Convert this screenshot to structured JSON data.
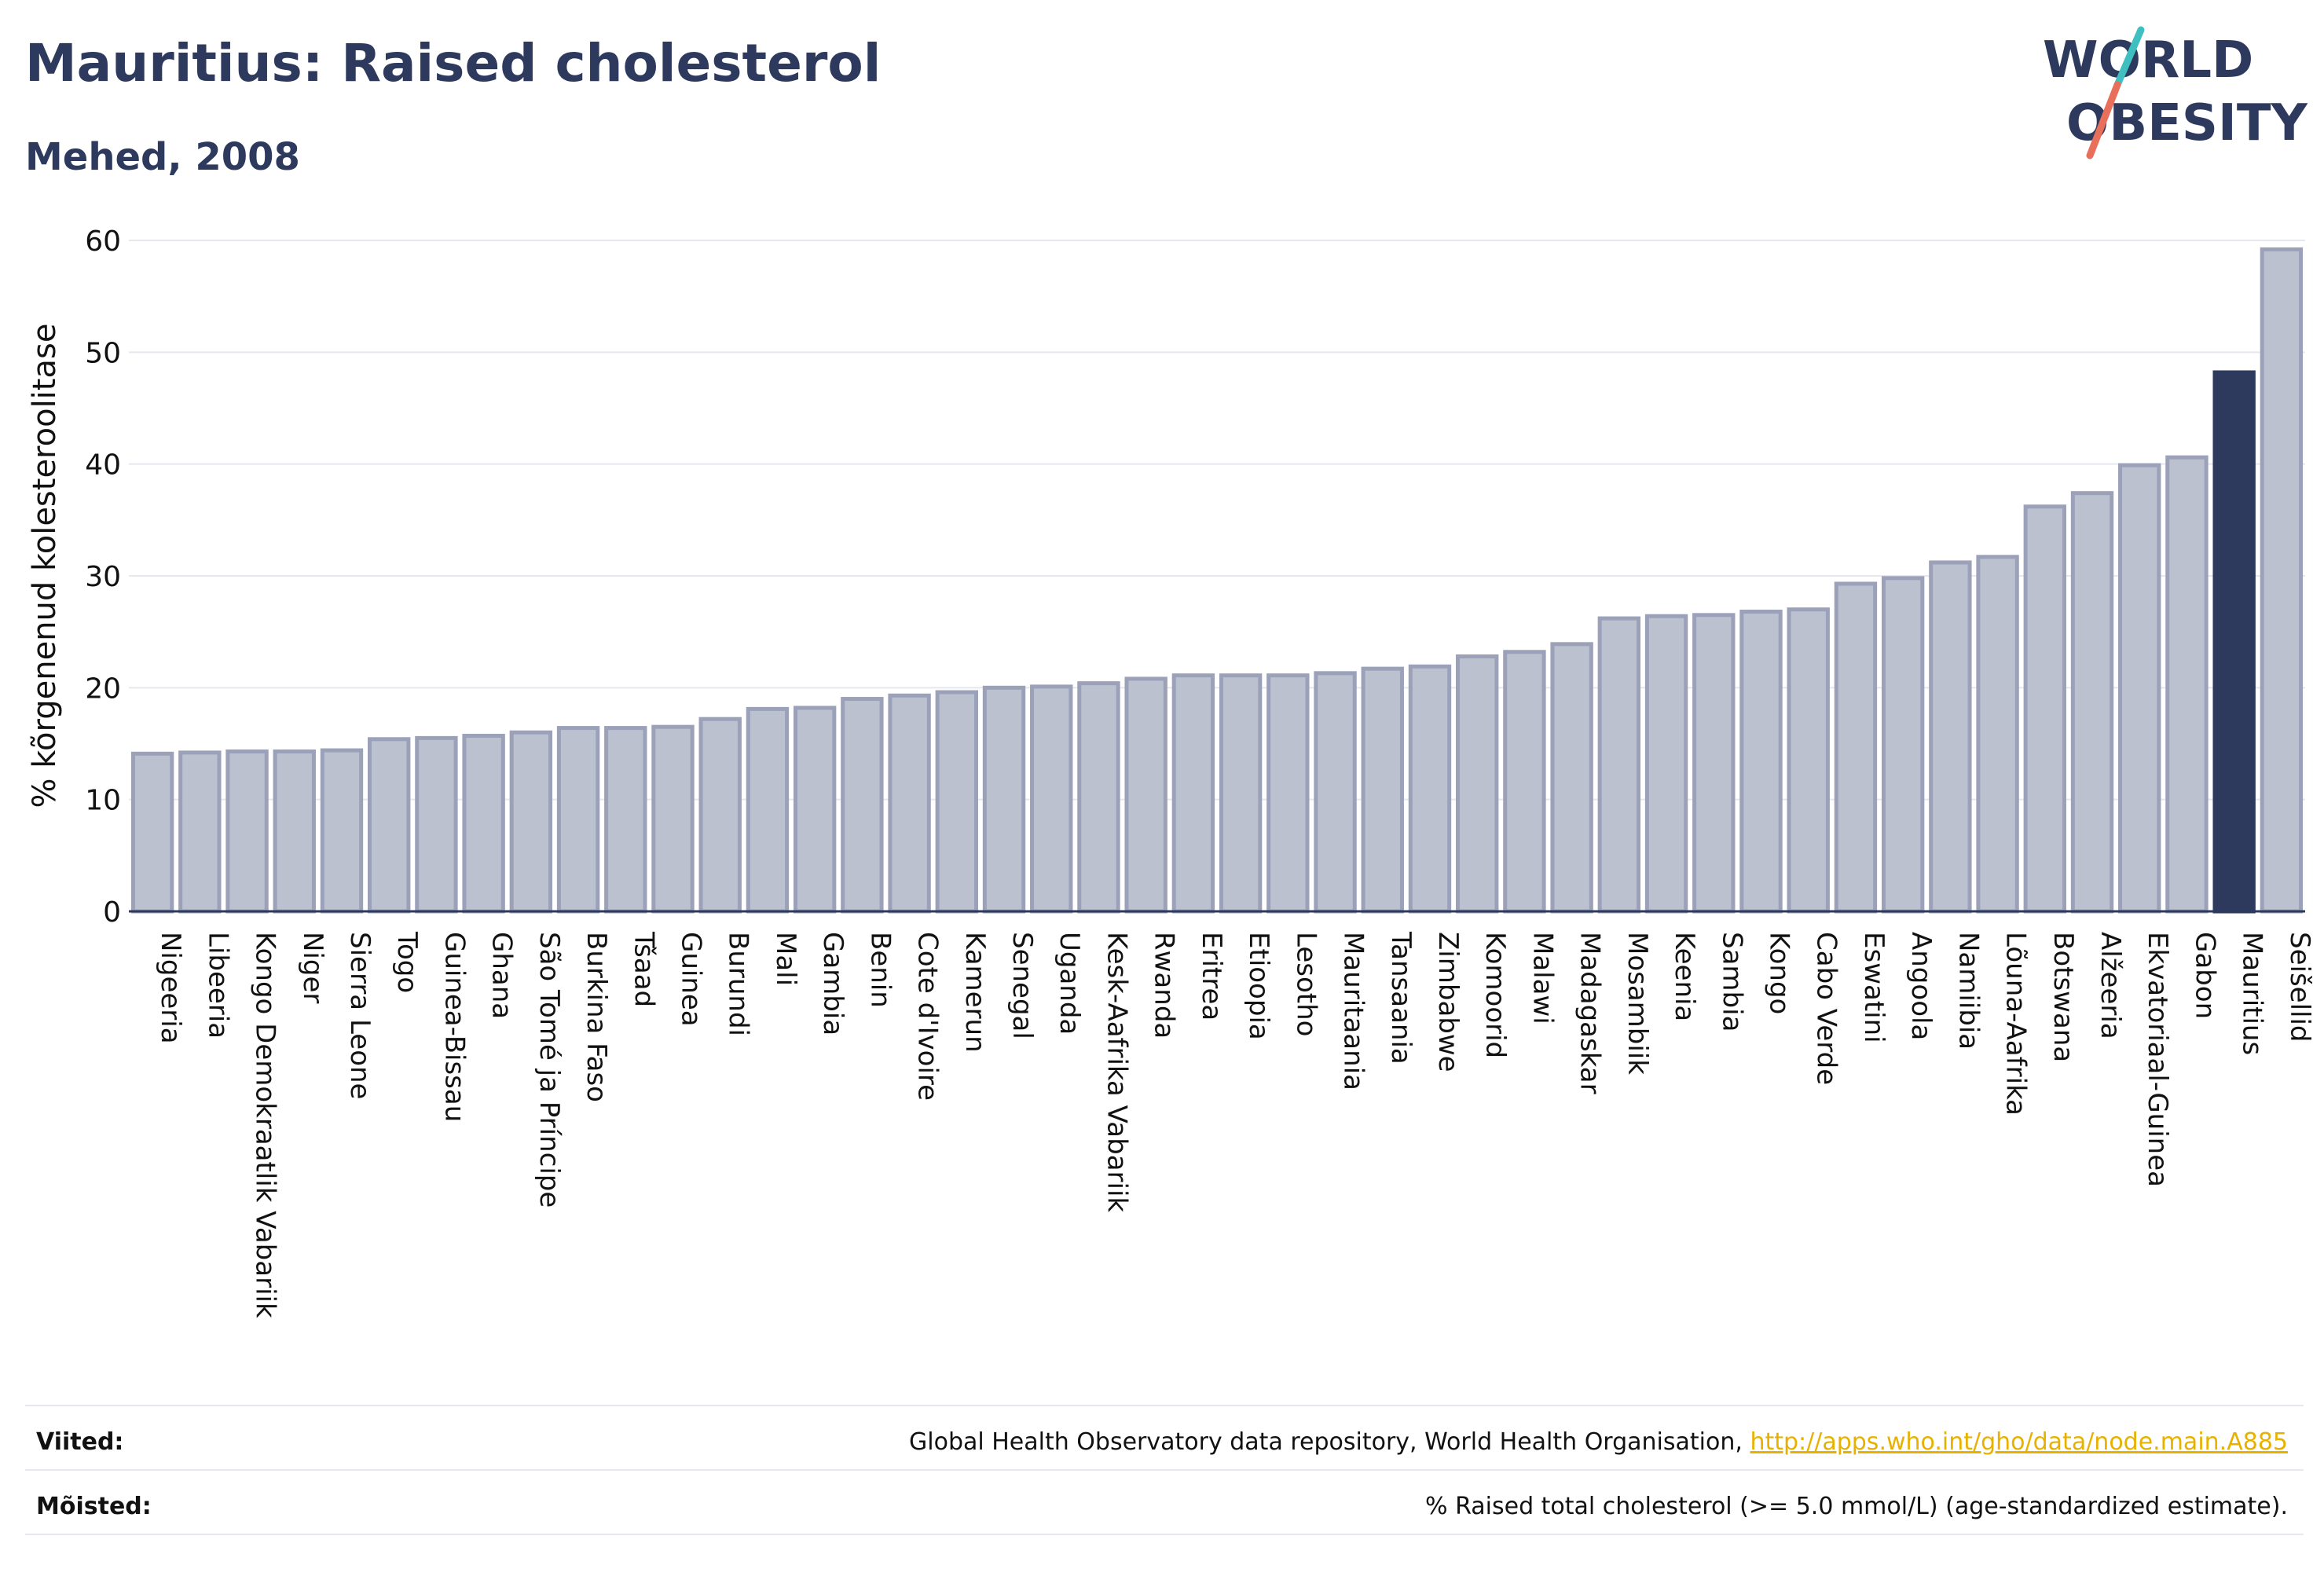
{
  "header": {
    "title": "Mauritius: Raised cholesterol",
    "subtitle": "Mehed, 2008"
  },
  "logo": {
    "line1": "WORLD",
    "line2": "OBESITY"
  },
  "chart_data": {
    "type": "bar",
    "ylabel": "% kõrgenenud kolesteroolitase",
    "ylim": [
      0,
      60
    ],
    "yticks": [
      0,
      10,
      20,
      30,
      40,
      50,
      60
    ],
    "grid": true,
    "highlight": "Mauritius",
    "colors": {
      "bar": "#bcc1d0",
      "bar_stroke": "#9aa1b8",
      "highlight": "#2d3a5e"
    },
    "categories": [
      "Nigeeria",
      "Libeeria",
      "Kongo Demokraatlik Vabariik",
      "Niger",
      "Sierra Leone",
      "Togo",
      "Guinea-Bissau",
      "Ghana",
      "São Tomé ja Príncipe",
      "Burkina Faso",
      "Tšaad",
      "Guinea",
      "Burundi",
      "Mali",
      "Gambia",
      "Benin",
      "Cote d'Ivoire",
      "Kamerun",
      "Senegal",
      "Uganda",
      "Kesk-Aafrika Vabariik",
      "Rwanda",
      "Eritrea",
      "Etioopia",
      "Lesotho",
      "Mauritaania",
      "Tansaania",
      "Zimbabwe",
      "Komoorid",
      "Malawi",
      "Madagaskar",
      "Mosambiik",
      "Keenia",
      "Sambia",
      "Kongo",
      "Cabo Verde",
      "Eswatini",
      "Angoola",
      "Namiibia",
      "Lõuna-Aafrika",
      "Botswana",
      "Alžeeria",
      "Ekvatoriaal-Guinea",
      "Gabon",
      "Mauritius",
      "Seišellid"
    ],
    "values": [
      14.1,
      14.2,
      14.3,
      14.3,
      14.4,
      15.4,
      15.5,
      15.7,
      16.0,
      16.4,
      16.4,
      16.5,
      17.2,
      18.1,
      18.2,
      19.0,
      19.3,
      19.6,
      20.0,
      20.1,
      20.4,
      20.8,
      21.1,
      21.1,
      21.1,
      21.3,
      21.7,
      21.9,
      22.8,
      23.2,
      23.9,
      26.2,
      26.4,
      26.5,
      26.8,
      27.0,
      29.3,
      29.8,
      31.2,
      31.7,
      36.2,
      37.4,
      39.9,
      40.6,
      48.2,
      59.2
    ]
  },
  "footer": {
    "sources_label": "Viited:",
    "sources_text": "Global Health Observatory data repository, World Health Organisation, ",
    "sources_link": "http://apps.who.int/gho/data/node.main.A885",
    "definitions_label": "Mõisted:",
    "definitions_text": "% Raised total cholesterol (>= 5.0 mmol/L) (age-standardized estimate)."
  }
}
